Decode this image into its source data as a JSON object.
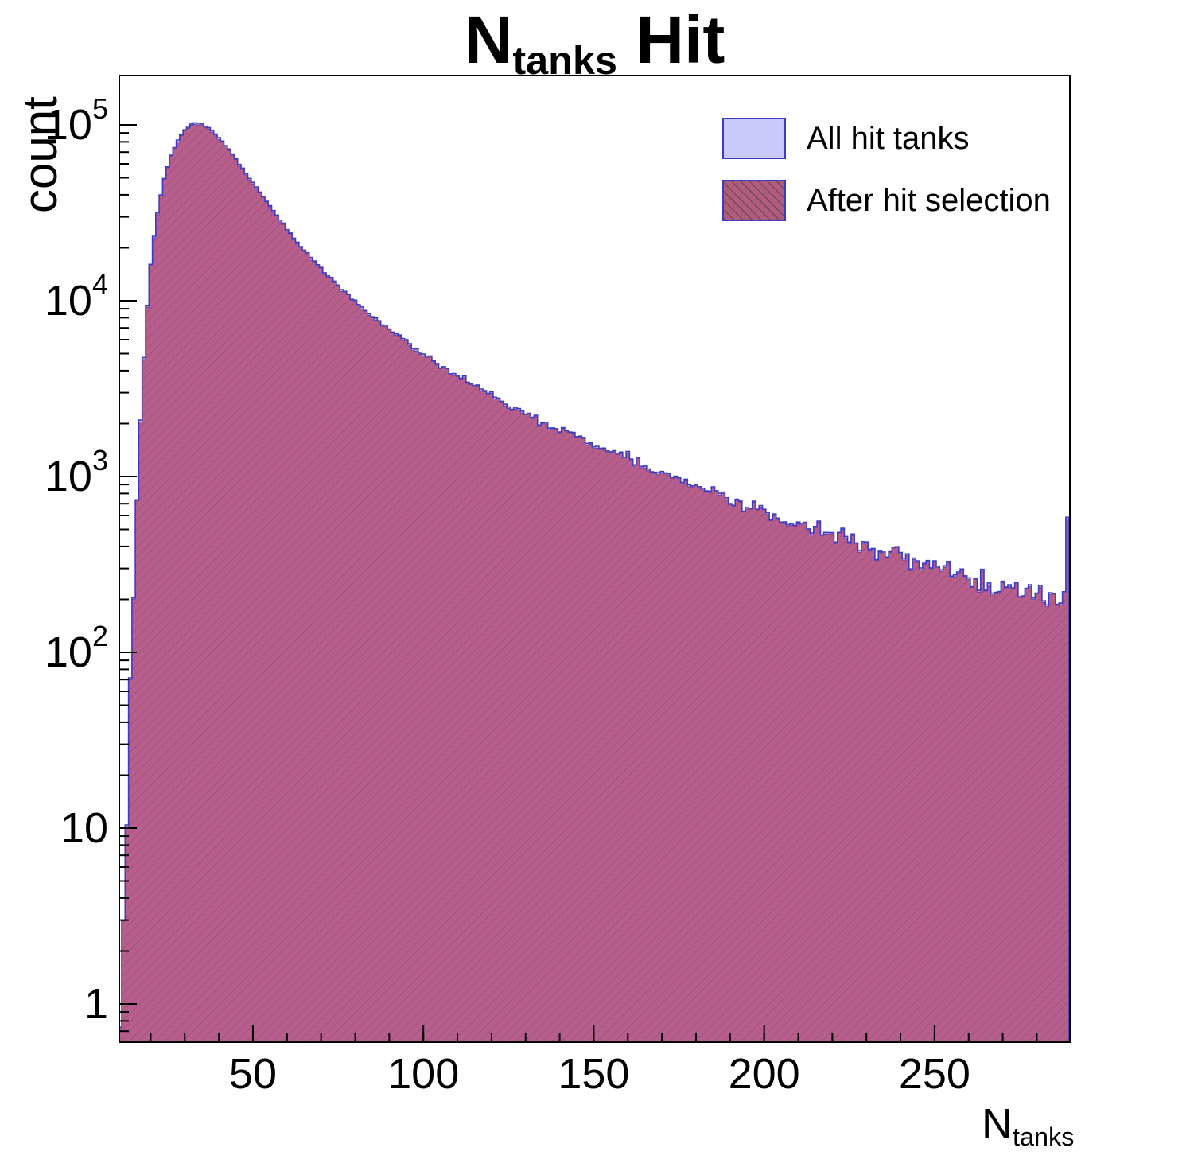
{
  "title": {
    "prefix": "N",
    "sub": "tanks",
    "suffix": " Hit"
  },
  "axes": {
    "y_label": "count",
    "x_label_prefix": "N",
    "x_label_sub": "tanks"
  },
  "legend": [
    {
      "label": "All hit tanks",
      "style": "solid"
    },
    {
      "label": "After hit selection",
      "style": "hatched"
    }
  ],
  "colors": {
    "hist1_fill": "#c9c9fb",
    "hist1_edge": "#3b3bc4",
    "hist2_fill": "rgba(178,64,110,0.78)",
    "hist2_edge": "rgba(80,45,140,0.75)",
    "hatch_line": "rgba(70,40,55,0.30)",
    "frame": "#000000",
    "text": "#000000"
  },
  "chart_data": {
    "type": "bar",
    "subtype": "histogram-log-y",
    "title": "N_tanks Hit",
    "xlabel": "N_tanks",
    "ylabel": "count",
    "ylog": true,
    "xlim": [
      10.8,
      289.7
    ],
    "ylim": [
      0.6,
      190000
    ],
    "bin_width": 1,
    "x_ticks": [
      50,
      100,
      150,
      200,
      250
    ],
    "x_minor_step": 10,
    "y_tick_exponents": [
      0,
      1,
      2,
      3,
      4,
      5
    ],
    "legend_position": "top-right",
    "grid": false,
    "seed": 1337,
    "series": [
      {
        "name": "All hit tanks",
        "anchors": [
          [
            11,
            0.8
          ],
          [
            12,
            3
          ],
          [
            13,
            12
          ],
          [
            14,
            55
          ],
          [
            15,
            230
          ],
          [
            16,
            750
          ],
          [
            17,
            2100
          ],
          [
            18,
            4800
          ],
          [
            19,
            9500
          ],
          [
            20,
            16000
          ],
          [
            21,
            23500
          ],
          [
            22,
            32000
          ],
          [
            24,
            50000
          ],
          [
            26,
            67000
          ],
          [
            28,
            82000
          ],
          [
            30,
            94000
          ],
          [
            32,
            101000
          ],
          [
            33,
            103000
          ],
          [
            35,
            101000
          ],
          [
            37,
            96000
          ],
          [
            39,
            89000
          ],
          [
            41,
            81000
          ],
          [
            43,
            72500
          ],
          [
            45,
            64000
          ],
          [
            47,
            56500
          ],
          [
            50,
            47000
          ],
          [
            53,
            39000
          ],
          [
            56,
            32500
          ],
          [
            60,
            25500
          ],
          [
            64,
            20500
          ],
          [
            68,
            16800
          ],
          [
            72,
            14000
          ],
          [
            76,
            11800
          ],
          [
            80,
            10000
          ],
          [
            85,
            8200
          ],
          [
            90,
            6900
          ],
          [
            95,
            5800
          ],
          [
            100,
            5000
          ],
          [
            105,
            4300
          ],
          [
            110,
            3750
          ],
          [
            115,
            3300
          ],
          [
            120,
            2900
          ],
          [
            125,
            2570
          ],
          [
            130,
            2290
          ],
          [
            135,
            2060
          ],
          [
            140,
            1860
          ],
          [
            145,
            1680
          ],
          [
            150,
            1520
          ],
          [
            155,
            1380
          ],
          [
            160,
            1260
          ],
          [
            165,
            1150
          ],
          [
            170,
            1050
          ],
          [
            175,
            960
          ],
          [
            180,
            880
          ],
          [
            185,
            810
          ],
          [
            190,
            745
          ],
          [
            195,
            690
          ],
          [
            200,
            640
          ],
          [
            205,
            595
          ],
          [
            210,
            550
          ],
          [
            215,
            512
          ],
          [
            220,
            478
          ],
          [
            225,
            447
          ],
          [
            230,
            400
          ],
          [
            235,
            375
          ],
          [
            240,
            350
          ],
          [
            245,
            325
          ],
          [
            250,
            300
          ],
          [
            255,
            285
          ],
          [
            260,
            268
          ],
          [
            265,
            252
          ],
          [
            270,
            240
          ],
          [
            275,
            228
          ],
          [
            280,
            220
          ],
          [
            283,
            214
          ],
          [
            285,
            212
          ],
          [
            287,
            218
          ],
          [
            288,
            248
          ],
          [
            289,
            620
          ]
        ]
      },
      {
        "name": "After hit selection",
        "ratio_to_first": 0.985
      }
    ]
  }
}
